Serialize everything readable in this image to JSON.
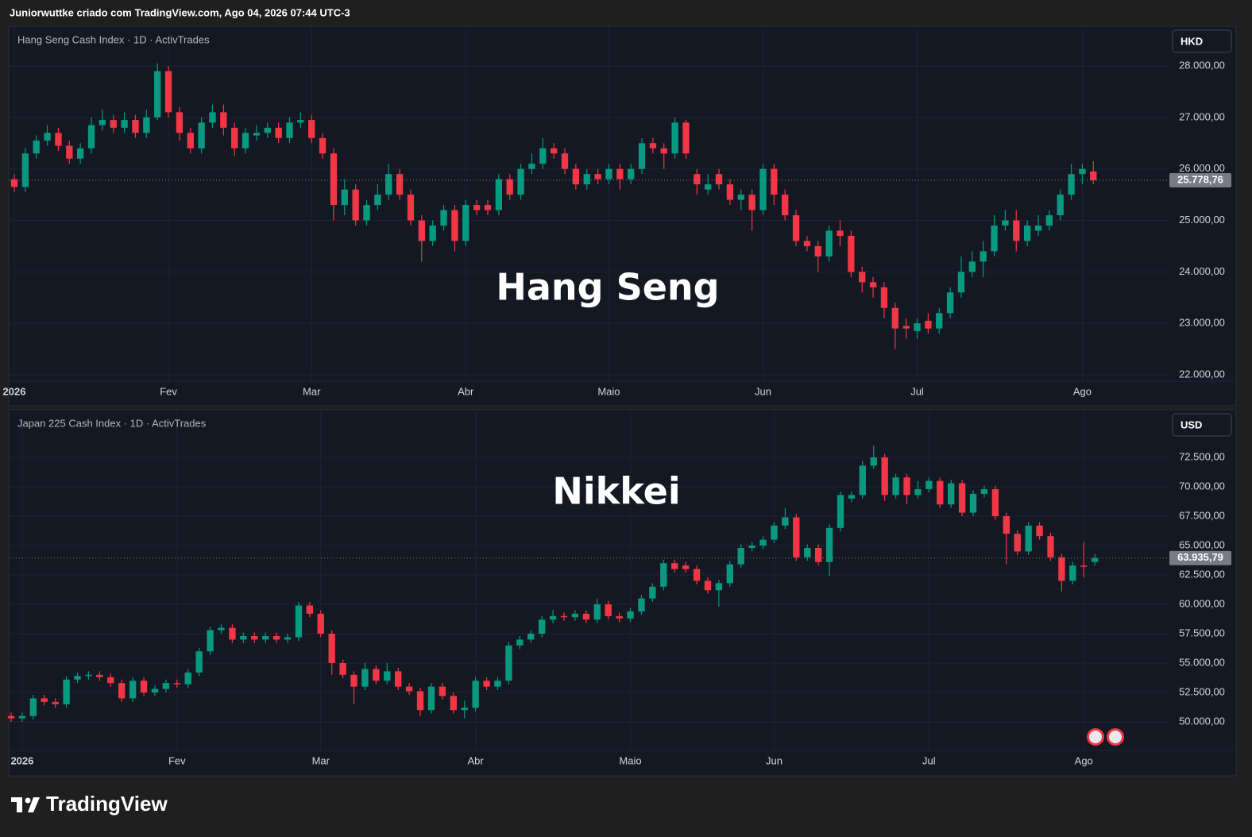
{
  "header": "Juniorwuttke criado com TradingView.com, Ago 04, 2026 07:44 UTC-3",
  "brand": "TradingView",
  "chart_data": [
    {
      "type": "candlestick",
      "title": "Hang Seng Cash Index · 1D · ActivTrades",
      "annotation": "Hang Seng",
      "currency": "HKD",
      "up_color": "#089981",
      "down_color": "#f23645",
      "grid": true,
      "ylim": [
        21877,
        28741
      ],
      "yticks": [
        {
          "value": 22000,
          "label": "22.000,00"
        },
        {
          "value": 23000,
          "label": "23.000,00"
        },
        {
          "value": 24000,
          "label": "24.000,00"
        },
        {
          "value": 25000,
          "label": "25.000,00"
        },
        {
          "value": 26000,
          "label": "26.000,00"
        },
        {
          "value": 27000,
          "label": "27.000,00"
        },
        {
          "value": 28000,
          "label": "28.000,00"
        }
      ],
      "last_price": {
        "value": 25778.76,
        "label": "25.778,76"
      },
      "categories": [
        "2026",
        null,
        null,
        null,
        null,
        null,
        null,
        null,
        null,
        null,
        null,
        null,
        null,
        null,
        "Fev",
        null,
        null,
        null,
        null,
        null,
        null,
        null,
        null,
        null,
        null,
        null,
        null,
        "Mar",
        null,
        null,
        null,
        null,
        null,
        null,
        null,
        null,
        null,
        null,
        null,
        null,
        null,
        "Abr",
        null,
        null,
        null,
        null,
        null,
        null,
        null,
        null,
        null,
        null,
        null,
        null,
        "Maio",
        null,
        null,
        null,
        null,
        null,
        null,
        null,
        null,
        null,
        null,
        null,
        null,
        null,
        "Jun",
        null,
        null,
        null,
        null,
        null,
        null,
        null,
        null,
        null,
        null,
        null,
        null,
        null,
        "Jul",
        null,
        null,
        null,
        null,
        null,
        null,
        null,
        null,
        null,
        null,
        null,
        null,
        null,
        null,
        "Ago",
        null
      ],
      "open": [
        25800,
        25650,
        26300,
        26550,
        26700,
        26450,
        26200,
        26400,
        26850,
        26950,
        26800,
        26950,
        26700,
        27000,
        27900,
        27100,
        26700,
        26400,
        26900,
        27100,
        26800,
        26400,
        26650,
        26700,
        26800,
        26600,
        26900,
        26950,
        26600,
        26300,
        25300,
        25600,
        25000,
        25300,
        25500,
        25900,
        25500,
        25000,
        24600,
        24900,
        25200,
        24600,
        25300,
        25300,
        25200,
        25800,
        25500,
        26000,
        26100,
        26400,
        26300,
        26000,
        25700,
        25900,
        25800,
        26000,
        25800,
        26000,
        26500,
        26400,
        26300,
        26900,
        25900,
        25600,
        25900,
        25700,
        25400,
        25500,
        25200,
        26000,
        25500,
        25100,
        24600,
        24500,
        24300,
        24800,
        24700,
        24000,
        23800,
        23700,
        23300,
        22950,
        22850,
        23050,
        22900,
        23200,
        23600,
        24000,
        24200,
        24400,
        24900,
        25000,
        24600,
        24800,
        24900,
        25100,
        25500,
        25900,
        25950
      ],
      "high": [
        25900,
        26400,
        26650,
        26850,
        26800,
        26550,
        26500,
        27000,
        27150,
        27050,
        27100,
        27050,
        27150,
        28050,
        28000,
        27200,
        26800,
        27000,
        27250,
        27250,
        26900,
        26800,
        26850,
        26900,
        26900,
        27000,
        27100,
        27050,
        26700,
        26400,
        25800,
        25700,
        25400,
        25700,
        26100,
        26000,
        25600,
        25100,
        25000,
        25300,
        25300,
        25400,
        25400,
        25400,
        25900,
        25900,
        26100,
        26300,
        26600,
        26500,
        26400,
        26100,
        26000,
        26000,
        26100,
        26100,
        26100,
        26600,
        26600,
        26500,
        27000,
        26950,
        26000,
        25900,
        26000,
        25800,
        25600,
        25600,
        26100,
        26100,
        25600,
        25200,
        24700,
        24600,
        24900,
        25000,
        24800,
        24100,
        23900,
        23800,
        23400,
        23100,
        23100,
        23200,
        23300,
        23700,
        24300,
        24400,
        24600,
        25100,
        25200,
        25200,
        25000,
        25100,
        25200,
        25600,
        26100,
        26100,
        26150
      ],
      "low": [
        25550,
        25550,
        26200,
        26450,
        26350,
        26100,
        26100,
        26300,
        26750,
        26700,
        26700,
        26600,
        26600,
        26950,
        27000,
        26550,
        26300,
        26300,
        26800,
        26650,
        26250,
        26300,
        26550,
        26600,
        26500,
        26500,
        26800,
        26500,
        26200,
        25000,
        25100,
        24900,
        24900,
        25200,
        25400,
        25400,
        24900,
        24200,
        24500,
        24800,
        24400,
        24500,
        25100,
        25100,
        25100,
        25400,
        25400,
        25900,
        26000,
        26200,
        25900,
        25600,
        25600,
        25700,
        25700,
        25600,
        25700,
        25900,
        26300,
        26000,
        26200,
        26200,
        25500,
        25500,
        25600,
        25300,
        25200,
        24800,
        25100,
        25300,
        25000,
        24500,
        24400,
        24000,
        24200,
        24500,
        23900,
        23600,
        23500,
        23100,
        22500,
        22700,
        22700,
        22800,
        22800,
        23100,
        23500,
        23900,
        23900,
        24300,
        24800,
        24400,
        24500,
        24700,
        24800,
        25000,
        25400,
        25700,
        25700
      ],
      "close": [
        25650,
        26300,
        26550,
        26700,
        26450,
        26200,
        26400,
        26850,
        26950,
        26800,
        26950,
        26700,
        27000,
        27900,
        27100,
        26700,
        26400,
        26900,
        27100,
        26800,
        26400,
        26700,
        26700,
        26800,
        26600,
        26900,
        26950,
        26600,
        26300,
        25300,
        25600,
        25000,
        25300,
        25500,
        25900,
        25500,
        25000,
        24600,
        24900,
        25200,
        24600,
        25300,
        25200,
        25200,
        25800,
        25500,
        26000,
        26100,
        26400,
        26300,
        26000,
        25700,
        25900,
        25800,
        26000,
        25800,
        26000,
        26500,
        26400,
        26300,
        26900,
        26300,
        25700,
        25700,
        25700,
        25400,
        25500,
        25200,
        26000,
        25500,
        25100,
        24600,
        24500,
        24300,
        24800,
        24700,
        24000,
        23800,
        23700,
        23300,
        22900,
        22900,
        23000,
        22900,
        23200,
        23600,
        24000,
        24200,
        24400,
        24900,
        25000,
        24600,
        24900,
        24900,
        25100,
        25500,
        25900,
        26000,
        25778.76
      ]
    },
    {
      "type": "candlestick",
      "title": "Japan 225 Cash Index · 1D · ActivTrades",
      "annotation": "Nikkei",
      "currency": "USD",
      "up_color": "#089981",
      "down_color": "#f23645",
      "grid": true,
      "ylim": [
        47568,
        76419
      ],
      "yticks": [
        {
          "value": 50000,
          "label": "50.000,00"
        },
        {
          "value": 52500,
          "label": "52.500,00"
        },
        {
          "value": 55000,
          "label": "55.000,00"
        },
        {
          "value": 57500,
          "label": "57.500,00"
        },
        {
          "value": 60000,
          "label": "60.000,00"
        },
        {
          "value": 62500,
          "label": "62.500,00"
        },
        {
          "value": 65000,
          "label": "65.000,00"
        },
        {
          "value": 67500,
          "label": "67.500,00"
        },
        {
          "value": 70000,
          "label": "70.000,00"
        },
        {
          "value": 72500,
          "label": "72.500,00"
        }
      ],
      "last_price": {
        "value": 63935.79,
        "label": "63.935,79"
      },
      "categories": [
        null,
        "2026",
        null,
        null,
        null,
        null,
        null,
        null,
        null,
        null,
        null,
        null,
        null,
        null,
        null,
        "Fev",
        null,
        null,
        null,
        null,
        null,
        null,
        null,
        null,
        null,
        null,
        null,
        null,
        "Mar",
        null,
        null,
        null,
        null,
        null,
        null,
        null,
        null,
        null,
        null,
        null,
        null,
        null,
        "Abr",
        null,
        null,
        null,
        null,
        null,
        null,
        null,
        null,
        null,
        null,
        null,
        null,
        null,
        "Maio",
        null,
        null,
        null,
        null,
        null,
        null,
        null,
        null,
        null,
        null,
        null,
        null,
        "Jun",
        null,
        null,
        null,
        null,
        null,
        null,
        null,
        null,
        null,
        null,
        null,
        null,
        null,
        "Jul",
        null,
        null,
        null,
        null,
        null,
        null,
        null,
        null,
        null,
        null,
        null,
        null,
        null,
        "Ago",
        null
      ],
      "open": [
        50500,
        50300,
        50500,
        52000,
        51700,
        51500,
        53600,
        53900,
        54000,
        53800,
        53300,
        52000,
        53500,
        52500,
        52800,
        53300,
        53200,
        54200,
        56000,
        57800,
        58000,
        57000,
        57300,
        57000,
        57300,
        57000,
        57200,
        59900,
        59200,
        57500,
        55000,
        54000,
        53000,
        54500,
        53500,
        54300,
        53000,
        52600,
        51000,
        53000,
        52200,
        51000,
        51200,
        53500,
        53000,
        53500,
        56500,
        57000,
        57500,
        58700,
        59000,
        58900,
        59200,
        58700,
        60000,
        59000,
        58800,
        59400,
        60500,
        61500,
        63500,
        63300,
        63000,
        62000,
        61200,
        61800,
        63400,
        64800,
        65000,
        65500,
        66700,
        67400,
        64000,
        64800,
        63600,
        66500,
        69000,
        69300,
        71800,
        72500,
        69300,
        70800,
        69300,
        69800,
        70500,
        68500,
        70300,
        67800,
        69400,
        69800,
        67500,
        66000,
        64500,
        66700,
        65800,
        64000,
        62000,
        63300,
        63600
      ],
      "high": [
        50800,
        50800,
        52300,
        52300,
        52000,
        53900,
        54200,
        54300,
        54300,
        54100,
        53600,
        53800,
        53800,
        53100,
        53600,
        53600,
        54500,
        56300,
        58100,
        58300,
        58300,
        57600,
        57600,
        57600,
        57600,
        57500,
        60200,
        60200,
        59500,
        57800,
        55300,
        54300,
        55000,
        54800,
        55000,
        54600,
        53300,
        52900,
        53300,
        53300,
        52500,
        51800,
        53800,
        53800,
        53800,
        56800,
        57300,
        57800,
        59000,
        59500,
        59300,
        59500,
        59500,
        60500,
        60300,
        59300,
        59700,
        60800,
        61800,
        63800,
        63800,
        63600,
        63300,
        62300,
        62100,
        63700,
        65100,
        65300,
        65800,
        67000,
        68200,
        67700,
        65100,
        65100,
        66800,
        69600,
        69600,
        72200,
        73500,
        72800,
        71100,
        71100,
        70500,
        70800,
        70800,
        70600,
        70600,
        69700,
        70100,
        70100,
        67800,
        66300,
        67000,
        67000,
        66100,
        64300,
        63600,
        65300,
        64300
      ],
      "low": [
        50000,
        50000,
        50200,
        51400,
        51200,
        51200,
        53300,
        53600,
        53500,
        53000,
        51700,
        51700,
        52200,
        52200,
        52500,
        52900,
        52900,
        53900,
        55700,
        57500,
        56700,
        56700,
        56700,
        56700,
        56700,
        56700,
        56900,
        58900,
        57200,
        54000,
        53700,
        51500,
        52700,
        53200,
        53200,
        52700,
        52300,
        50500,
        50700,
        51900,
        50700,
        50300,
        50900,
        52700,
        52700,
        53200,
        56200,
        56700,
        57200,
        58400,
        58600,
        58600,
        58400,
        58400,
        58700,
        58500,
        58500,
        59100,
        60200,
        61200,
        62700,
        62700,
        61700,
        60900,
        59800,
        61500,
        63100,
        64500,
        64700,
        65200,
        66400,
        63700,
        63700,
        63300,
        62400,
        66200,
        68700,
        69000,
        71500,
        68800,
        69000,
        68500,
        69000,
        69500,
        68200,
        68200,
        67500,
        67500,
        69100,
        67200,
        63400,
        64200,
        64200,
        65500,
        63700,
        61100,
        61700,
        62300,
        63300
      ],
      "close": [
        50300,
        50500,
        52000,
        51700,
        51500,
        53600,
        53900,
        54000,
        53800,
        53300,
        52000,
        53500,
        52500,
        52800,
        53300,
        53200,
        54200,
        56000,
        57800,
        58000,
        57000,
        57300,
        57000,
        57300,
        57000,
        57200,
        59900,
        59200,
        57500,
        55000,
        54000,
        53000,
        54500,
        53500,
        54300,
        53000,
        52600,
        51000,
        53000,
        52200,
        51000,
        51200,
        53500,
        53000,
        53500,
        56500,
        57000,
        57500,
        58700,
        59000,
        58900,
        59200,
        58700,
        60000,
        59000,
        58800,
        59400,
        60500,
        61500,
        63500,
        63000,
        63000,
        62000,
        61200,
        61800,
        63400,
        64800,
        65000,
        65500,
        66700,
        67400,
        64000,
        64800,
        63600,
        66500,
        69300,
        69300,
        71800,
        72500,
        69300,
        70800,
        69300,
        69800,
        70500,
        68500,
        70300,
        67800,
        69400,
        69800,
        67500,
        66000,
        64500,
        66700,
        65800,
        64000,
        62000,
        63300,
        63200,
        63935.79
      ]
    }
  ]
}
